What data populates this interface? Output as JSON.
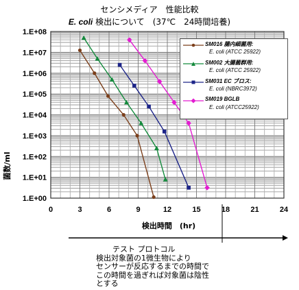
{
  "title_line1": "センシメディア　性能比較",
  "title_line2_italic": "E. coli",
  "title_line2_rest": " 検出について　(37℃　24時間培養)",
  "ylabel": "菌数/ml",
  "xlabel": "検出時間　(hr)",
  "protocol": {
    "heading": "テスト プロトコル",
    "lines": [
      "検出対象菌の1微生物により",
      "センサーが反応するまでの時間で",
      "この時間を過ぎれば対象菌は陰性",
      "とする"
    ]
  },
  "chart_data": {
    "type": "line",
    "title": "センシメディア　性能比較 E. coli 検出について　(37℃　24時間培養)",
    "xlabel": "検出時間　(hr)",
    "ylabel": "菌数/ml",
    "xlim": [
      0,
      24
    ],
    "ylim_log10": [
      0,
      8
    ],
    "yscale": "log",
    "x_ticks": [
      "0",
      "3",
      "6",
      "9",
      "12",
      "15",
      "18",
      "21",
      "24"
    ],
    "y_ticks": [
      "1.E+00",
      "1.E+01",
      "1.E+02",
      "1.E+03",
      "1.E+04",
      "1.E+05",
      "1.E+06",
      "1.E+07",
      "1.E+08"
    ],
    "grid": true,
    "legend_position": "top-right",
    "series": [
      {
        "name": "SM016 腸内細菌用:",
        "detail": "E. coli (ATCC 25922)",
        "color": "#7b3f1b",
        "marker": "circle",
        "points": [
          [
            3.0,
            7.1
          ],
          [
            4.5,
            6.0
          ],
          [
            5.9,
            4.9
          ],
          [
            7.5,
            4.0
          ],
          [
            8.9,
            3.0
          ],
          [
            10.6,
            0.05
          ]
        ]
      },
      {
        "name": "SM002 大腸菌群用:",
        "detail": "E. coli (ATCC 25922)",
        "color": "#138a3c",
        "marker": "triangle",
        "points": [
          [
            3.4,
            7.7
          ],
          [
            4.8,
            6.7
          ],
          [
            6.3,
            5.7
          ],
          [
            7.8,
            4.6
          ],
          [
            9.3,
            3.6
          ],
          [
            10.9,
            2.4
          ],
          [
            11.8,
            0.9
          ]
        ]
      },
      {
        "name": "SM031 EC ブロス:",
        "detail": "E. coli (NBRC3972)",
        "color": "#1c2488",
        "marker": "square",
        "points": [
          [
            7.1,
            6.4
          ],
          [
            8.6,
            5.4
          ],
          [
            10.1,
            4.4
          ],
          [
            11.7,
            3.2
          ],
          [
            14.2,
            0.5
          ]
        ]
      },
      {
        "name": "SM019 BGLB",
        "detail": "E. coli (ATCC25922)",
        "color": "#e31cd1",
        "marker": "diamond",
        "points": [
          [
            8.1,
            7.6
          ],
          [
            9.7,
            6.6
          ],
          [
            11.2,
            5.6
          ],
          [
            12.7,
            4.6
          ],
          [
            14.2,
            3.6
          ],
          [
            16.1,
            0.5
          ]
        ]
      }
    ]
  }
}
